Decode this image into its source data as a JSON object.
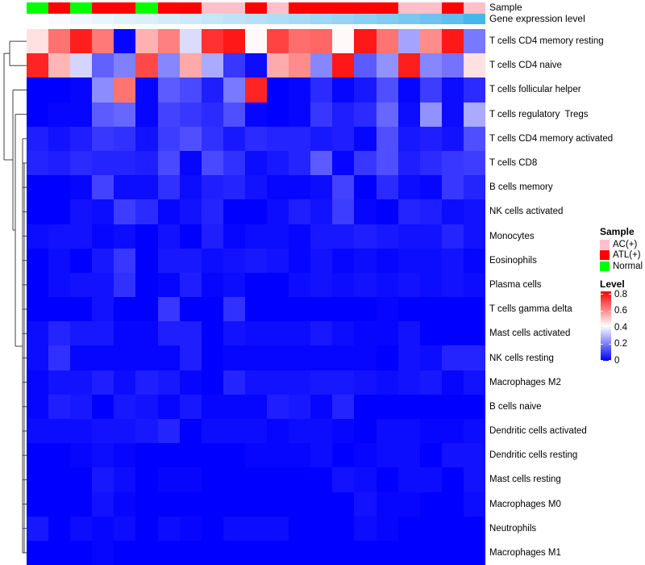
{
  "annotations_header": {
    "sample_label": "Sample",
    "gene_label": "Gene expression level"
  },
  "legend": {
    "sample_title": "Sample",
    "sample_items": [
      {
        "label": "AC(+)",
        "color": "#FFC0CB"
      },
      {
        "label": "ATL(+)",
        "color": "#FF0000"
      },
      {
        "label": "Normal",
        "color": "#00FF00"
      }
    ],
    "level_title": "Level",
    "level_ticks": [
      {
        "label": "0.8",
        "value": 0.8
      },
      {
        "label": "0.6",
        "value": 0.6
      },
      {
        "label": "0.4",
        "value": 0.4
      },
      {
        "label": "0.2",
        "value": 0.2
      },
      {
        "label": "0",
        "value": 0
      }
    ]
  },
  "chart_data": {
    "type": "heatmap",
    "n_columns": 21,
    "value_domain": [
      0,
      0.84
    ],
    "colormap": {
      "low": "#0000FF",
      "mid": "#FFFFFF",
      "high": "#FF0000",
      "mid_value": 0.42
    },
    "column_annotations": {
      "sample": {
        "label": "Sample",
        "color_map": {
          "AC(+)": "#FFC0CB",
          "ATL(+)": "#FF0000",
          "Normal": "#00FF00"
        },
        "values": [
          "Normal",
          "ATL(+)",
          "Normal",
          "ATL(+)",
          "ATL(+)",
          "Normal",
          "ATL(+)",
          "ATL(+)",
          "AC(+)",
          "AC(+)",
          "ATL(+)",
          "AC(+)",
          "ATL(+)",
          "ATL(+)",
          "ATL(+)",
          "ATL(+)",
          "ATL(+)",
          "AC(+)",
          "AC(+)",
          "ATL(+)",
          "AC(+)"
        ]
      },
      "gene_expression_level": {
        "label": "Gene expression level",
        "colors": [
          "#FEFFFF",
          "#F7FBFE",
          "#F0F8FE",
          "#E9F5FD",
          "#E2F2FC",
          "#DBEFFB",
          "#D4ECFA",
          "#CDE9FA",
          "#C6E6F9",
          "#BEE3F8",
          "#B7E0F7",
          "#AFDDF6",
          "#A7DAF5",
          "#9ED6F4",
          "#96D2F3",
          "#8DCFF2",
          "#83CBF1",
          "#79C7F0",
          "#6EC2EF",
          "#5FBEED",
          "#47B7EB"
        ]
      }
    },
    "rows": [
      {
        "label": "T cells CD4 memory resting",
        "values": [
          0.47,
          0.65,
          0.79,
          0.64,
          0.01,
          0.55,
          0.63,
          0.36,
          0.76,
          0.8,
          0.43,
          0.73,
          0.66,
          0.67,
          0.43,
          0.8,
          0.65,
          0.27,
          0.61,
          0.8,
          0.2
        ]
      },
      {
        "label": "T cells CD4 naive",
        "values": [
          0.78,
          0.54,
          0.35,
          0.16,
          0.21,
          0.72,
          0.22,
          0.56,
          0.28,
          0.09,
          0.02,
          0.56,
          0.61,
          0.22,
          0.8,
          0.15,
          0.24,
          0.79,
          0.22,
          0.19,
          0.47
        ]
      },
      {
        "label": "T cells follicular helper",
        "values": [
          0.0,
          0.0,
          0.01,
          0.23,
          0.65,
          0.01,
          0.15,
          0.12,
          0.05,
          0.2,
          0.78,
          0.0,
          0.01,
          0.07,
          0.01,
          0.04,
          0.13,
          0.01,
          0.1,
          0.02,
          0.07
        ]
      },
      {
        "label": "T cells regulatory  Tregs",
        "values": [
          0.0,
          0.01,
          0.01,
          0.15,
          0.17,
          0.01,
          0.11,
          0.09,
          0.07,
          0.13,
          0.01,
          0.0,
          0.01,
          0.09,
          0.05,
          0.07,
          0.17,
          0.02,
          0.24,
          0.02,
          0.28
        ]
      },
      {
        "label": "T cells CD4 memory activated",
        "values": [
          0.05,
          0.03,
          0.05,
          0.09,
          0.08,
          0.03,
          0.1,
          0.13,
          0.08,
          0.04,
          0.07,
          0.06,
          0.06,
          0.04,
          0.05,
          0.01,
          0.13,
          0.04,
          0.05,
          0.03,
          0.13
        ]
      },
      {
        "label": "T cells CD8",
        "values": [
          0.06,
          0.05,
          0.07,
          0.06,
          0.06,
          0.05,
          0.12,
          0.01,
          0.12,
          0.08,
          0.02,
          0.04,
          0.06,
          0.15,
          0.01,
          0.09,
          0.13,
          0.05,
          0.07,
          0.09,
          0.1
        ]
      },
      {
        "label": "B cells memory",
        "values": [
          0.0,
          0.0,
          0.01,
          0.11,
          0.02,
          0.02,
          0.08,
          0.02,
          0.05,
          0.06,
          0.03,
          0.01,
          0.01,
          0.02,
          0.11,
          0.0,
          0.07,
          0.02,
          0.01,
          0.09,
          0.06
        ]
      },
      {
        "label": "NK cells activated",
        "values": [
          0.0,
          0.0,
          0.03,
          0.02,
          0.1,
          0.07,
          0.01,
          0.03,
          0.06,
          0.0,
          0.0,
          0.02,
          0.05,
          0.03,
          0.1,
          0.01,
          0.0,
          0.06,
          0.05,
          0.02,
          0.03
        ]
      },
      {
        "label": "Monocytes",
        "values": [
          0.02,
          0.03,
          0.03,
          0.01,
          0.02,
          0.0,
          0.03,
          0.0,
          0.05,
          0.01,
          0.02,
          0.02,
          0.01,
          0.04,
          0.04,
          0.05,
          0.04,
          0.03,
          0.03,
          0.06,
          0.03
        ]
      },
      {
        "label": "Eosinophils",
        "values": [
          0.0,
          0.02,
          0.0,
          0.04,
          0.09,
          0.0,
          0.04,
          0.04,
          0.02,
          0.03,
          0.04,
          0.03,
          0.01,
          0.03,
          0.01,
          0.02,
          0.01,
          0.02,
          0.02,
          0.03,
          0.01
        ]
      },
      {
        "label": "Plasma cells",
        "values": [
          0.0,
          0.02,
          0.03,
          0.03,
          0.08,
          0.0,
          0.01,
          0.05,
          0.01,
          0.02,
          0.0,
          0.0,
          0.02,
          0.03,
          0.02,
          0.03,
          0.02,
          0.03,
          0.02,
          0.03,
          0.02
        ]
      },
      {
        "label": "T cells gamma delta",
        "values": [
          0.0,
          0.0,
          0.0,
          0.03,
          0.0,
          0.0,
          0.09,
          0.0,
          0.0,
          0.08,
          0.0,
          0.0,
          0.0,
          0.0,
          0.0,
          0.0,
          0.01,
          0.0,
          0.0,
          0.0,
          0.0
        ]
      },
      {
        "label": "Mast cells activated",
        "values": [
          0.02,
          0.06,
          0.04,
          0.04,
          0.01,
          0.01,
          0.05,
          0.05,
          0.0,
          0.03,
          0.02,
          0.02,
          0.02,
          0.04,
          0.02,
          0.01,
          0.01,
          0.03,
          0.0,
          0.0,
          0.0
        ]
      },
      {
        "label": "NK cells resting",
        "values": [
          0.02,
          0.08,
          0.01,
          0.01,
          0.01,
          0.01,
          0.01,
          0.05,
          0.0,
          0.01,
          0.01,
          0.01,
          0.01,
          0.01,
          0.01,
          0.01,
          0.0,
          0.03,
          0.02,
          0.06,
          0.06
        ]
      },
      {
        "label": "Macrophages M2",
        "values": [
          0.01,
          0.03,
          0.03,
          0.05,
          0.02,
          0.05,
          0.04,
          0.01,
          0.0,
          0.06,
          0.03,
          0.03,
          0.03,
          0.04,
          0.04,
          0.03,
          0.02,
          0.03,
          0.04,
          0.01,
          0.03
        ]
      },
      {
        "label": "B cells naive",
        "values": [
          0.01,
          0.05,
          0.04,
          0.0,
          0.04,
          0.03,
          0.01,
          0.04,
          0.01,
          0.01,
          0.01,
          0.05,
          0.04,
          0.01,
          0.06,
          0.0,
          0.0,
          0.0,
          0.0,
          0.0,
          0.0
        ]
      },
      {
        "label": "Dendritic cells activated",
        "values": [
          0.02,
          0.02,
          0.02,
          0.03,
          0.03,
          0.04,
          0.06,
          0.0,
          0.02,
          0.02,
          0.02,
          0.01,
          0.02,
          0.02,
          0.01,
          0.0,
          0.02,
          0.02,
          0.01,
          0.01,
          0.02
        ]
      },
      {
        "label": "Dendritic cells resting",
        "values": [
          0.0,
          0.0,
          0.01,
          0.02,
          0.01,
          0.0,
          0.0,
          0.0,
          0.0,
          0.0,
          0.01,
          0.01,
          0.01,
          0.02,
          0.0,
          0.01,
          0.02,
          0.02,
          0.0,
          0.03,
          0.03
        ]
      },
      {
        "label": "Mast cells resting",
        "values": [
          0.0,
          0.0,
          0.0,
          0.04,
          0.02,
          0.0,
          0.01,
          0.01,
          0.0,
          0.0,
          0.0,
          0.0,
          0.0,
          0.0,
          0.03,
          0.02,
          0.0,
          0.02,
          0.02,
          0.0,
          0.03
        ]
      },
      {
        "label": "Macrophages M0",
        "values": [
          0.0,
          0.0,
          0.0,
          0.03,
          0.01,
          0.0,
          0.0,
          0.0,
          0.0,
          0.0,
          0.0,
          0.0,
          0.0,
          0.0,
          0.0,
          0.03,
          0.01,
          0.01,
          0.0,
          0.0,
          0.02
        ]
      },
      {
        "label": "Neutrophils",
        "values": [
          0.04,
          0.0,
          0.02,
          0.01,
          0.02,
          0.0,
          0.02,
          0.01,
          0.0,
          0.02,
          0.02,
          0.02,
          0.0,
          0.0,
          0.0,
          0.02,
          0.01,
          0.0,
          0.0,
          0.0,
          0.0
        ]
      },
      {
        "label": "Macrophages M1",
        "values": [
          0.0,
          0.0,
          0.0,
          0.01,
          0.0,
          0.0,
          0.0,
          0.0,
          0.0,
          0.0,
          0.0,
          0.0,
          0.0,
          0.0,
          0.0,
          0.0,
          0.0,
          0.0,
          0.0,
          0.0,
          0.0
        ]
      }
    ]
  }
}
